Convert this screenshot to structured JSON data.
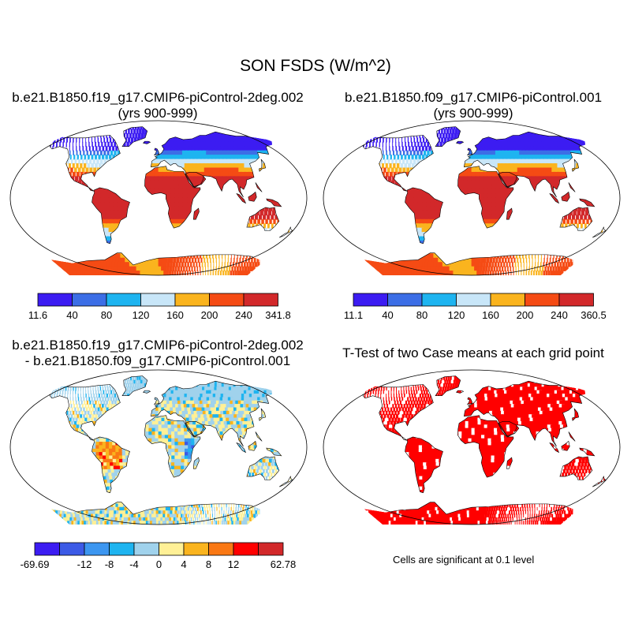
{
  "page": {
    "title": "SON FSDS (W/m^2)"
  },
  "panels": {
    "top_left": {
      "title_line1": "b.e21.B1850.f19_g17.CMIP6-piControl-2deg.002",
      "title_line2": "(yrs 900-999)",
      "field": "climatology"
    },
    "top_right": {
      "title_line1": "b.e21.B1850.f09_g17.CMIP6-piControl.001",
      "title_line2": "(yrs 900-999)",
      "field": "climatology"
    },
    "bottom_left": {
      "title_line1": "b.e21.B1850.f19_g17.CMIP6-piControl-2deg.002",
      "title_line2": "- b.e21.B1850.f09_g17.CMIP6-piControl.001",
      "field": "difference"
    },
    "bottom_right": {
      "title_line1": "T-Test of two Case means at each grid point",
      "field": "significance",
      "note": "Cells are significant at 0.1 level",
      "significant_color": "#ff0000"
    }
  },
  "colorbars": {
    "top_left": {
      "colors": [
        "#3c1cf2",
        "#3c6ee6",
        "#1eb4f0",
        "#c8e6f8",
        "#fab41e",
        "#f54b14",
        "#d2282a"
      ],
      "labels": [
        "11.6",
        "40",
        "80",
        "120",
        "160",
        "200",
        "240",
        "341.8"
      ]
    },
    "top_right": {
      "colors": [
        "#3c1cf2",
        "#3c6ee6",
        "#1eb4f0",
        "#c8e6f8",
        "#fab41e",
        "#f54b14",
        "#d2282a"
      ],
      "labels": [
        "11.1",
        "40",
        "80",
        "120",
        "160",
        "200",
        "240",
        "360.5"
      ]
    },
    "bottom": {
      "colors": [
        "#3c1cf2",
        "#3c5ae6",
        "#3c96f0",
        "#1eb4f0",
        "#a0d2ec",
        "#fff096",
        "#fab41e",
        "#fa7814",
        "#ff0000",
        "#d2282a"
      ],
      "labels": [
        "-69.69",
        "",
        "-12",
        "-8",
        "-4",
        "0",
        "4",
        "8",
        "12",
        "",
        "62.78"
      ]
    }
  },
  "chart_data": [
    {
      "type": "heatmap",
      "title": "b.e21.B1850.f19_g17.CMIP6-piControl-2deg.002 (yrs 900-999)",
      "value_range": [
        11.6,
        341.8
      ],
      "levels": [
        40,
        80,
        120,
        160,
        200,
        240
      ],
      "units": "W/m^2"
    },
    {
      "type": "heatmap",
      "title": "b.e21.B1850.f09_g17.CMIP6-piControl.001 (yrs 900-999)",
      "value_range": [
        11.1,
        360.5
      ],
      "levels": [
        40,
        80,
        120,
        160,
        200,
        240
      ],
      "units": "W/m^2"
    },
    {
      "type": "heatmap",
      "title": "b.e21.B1850.f19_g17.CMIP6-piControl-2deg.002 - b.e21.B1850.f09_g17.CMIP6-piControl.001",
      "value_range": [
        -69.69,
        62.78
      ],
      "levels": [
        -12,
        -8,
        -4,
        0,
        4,
        8,
        12
      ],
      "units": "W/m^2"
    },
    {
      "type": "heatmap",
      "title": "T-Test of two Case means at each grid point",
      "significance_level": 0.1
    }
  ]
}
